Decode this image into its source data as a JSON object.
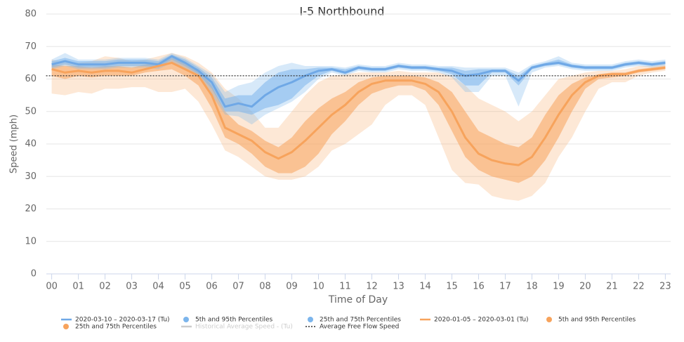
{
  "chart_data": {
    "type": "line",
    "title": "I-5 Northbound",
    "x_label": "Time of Day",
    "y_label": "Speed (mph)",
    "x": [
      0,
      0.5,
      1,
      1.5,
      2,
      2.5,
      3,
      3.5,
      4,
      4.5,
      5,
      5.5,
      6,
      6.5,
      7,
      7.5,
      8,
      8.5,
      9,
      9.5,
      10,
      10.5,
      11,
      11.5,
      12,
      12.5,
      13,
      13.5,
      14,
      14.5,
      15,
      15.5,
      16,
      16.5,
      17,
      17.5,
      18,
      18.5,
      19,
      19.5,
      20,
      20.5,
      21,
      21.5,
      22,
      22.5,
      23
    ],
    "xlim": [
      -0.2,
      23.2
    ],
    "xticks": [
      {
        "value": 0,
        "label": "00"
      },
      {
        "value": 1,
        "label": "01"
      },
      {
        "value": 2,
        "label": "02"
      },
      {
        "value": 3,
        "label": "03"
      },
      {
        "value": 4,
        "label": "04"
      },
      {
        "value": 5,
        "label": "05"
      },
      {
        "value": 6,
        "label": "06"
      },
      {
        "value": 7,
        "label": "07"
      },
      {
        "value": 8,
        "label": "08"
      },
      {
        "value": 9,
        "label": "09"
      },
      10,
      11,
      12,
      13,
      14,
      15,
      16,
      17,
      18,
      19,
      20,
      21,
      22,
      23
    ],
    "ylim": [
      0,
      80
    ],
    "yticks": [
      0,
      10,
      20,
      30,
      40,
      50,
      60,
      70,
      80
    ],
    "grid": true,
    "legend": "bottom",
    "series": [
      {
        "name": "2020-03-10 – 2020-03-17 (Tu)",
        "kind": "line",
        "color": "#6fa8e6",
        "values": [
          64.5,
          65.5,
          64.5,
          64.5,
          64.5,
          65,
          65,
          65,
          64.5,
          67,
          65,
          62.5,
          59,
          51.5,
          52.5,
          51.5,
          55,
          57.5,
          59,
          61,
          62.5,
          63,
          62,
          63.5,
          63,
          63,
          64,
          63.5,
          63.5,
          63,
          62.5,
          61,
          61.5,
          62.5,
          62.5,
          59.5,
          63.5,
          64.5,
          65,
          64,
          63.5,
          63.5,
          63.5,
          64.5,
          65,
          64.5,
          65
        ]
      },
      {
        "name": "5th and 95th Percentiles",
        "kind": "range",
        "color": "#7cb5ec",
        "fill_opacity": 0.3,
        "low": [
          63,
          64,
          63,
          63,
          63,
          63.5,
          63.5,
          63.5,
          63,
          65,
          63,
          60.5,
          55,
          49,
          48.5,
          46,
          49,
          51,
          53,
          56,
          60,
          62,
          61,
          62.5,
          62,
          62,
          63,
          62.5,
          62.5,
          62,
          60.5,
          56,
          56,
          61,
          61,
          51.5,
          62,
          63.5,
          64,
          63,
          62.5,
          62.5,
          62.5,
          63.5,
          64,
          63.5,
          64
        ],
        "high": [
          66,
          68,
          66,
          66,
          66,
          66.5,
          66.5,
          66.5,
          66,
          68,
          66.5,
          64,
          61.5,
          56,
          58,
          59,
          62,
          64,
          65,
          64,
          64,
          64,
          63.5,
          64.5,
          64,
          64,
          65,
          64.5,
          64.5,
          64,
          64,
          63.5,
          63.5,
          63.5,
          63.5,
          62,
          64.5,
          65.5,
          67,
          65,
          64.5,
          64.5,
          64.5,
          65.5,
          66,
          65.5,
          66
        ]
      },
      {
        "name": "25th and 75th Percentiles",
        "kind": "range",
        "color": "#7cb5ec",
        "fill_opacity": 0.55,
        "low": [
          63.5,
          64.5,
          63.5,
          63.5,
          63.5,
          64,
          64,
          64,
          63.5,
          66,
          64,
          61.5,
          57,
          50,
          50,
          49,
          51,
          52,
          54,
          58,
          61,
          62.5,
          61.5,
          63,
          62.5,
          62.5,
          63.5,
          63,
          63,
          62.5,
          61.5,
          58,
          58,
          62,
          62,
          58,
          63,
          64,
          64.5,
          63.5,
          63,
          63,
          63,
          64,
          64.5,
          64,
          64.5
        ],
        "high": [
          65.5,
          66.5,
          65.5,
          65.5,
          65.5,
          66,
          66,
          66,
          65.5,
          67.5,
          66,
          63.5,
          60.5,
          54,
          55,
          55,
          59,
          62,
          63,
          63,
          63.5,
          63.5,
          63,
          64,
          63.5,
          63.5,
          64.5,
          64,
          64,
          63.5,
          63.5,
          62.5,
          63,
          63,
          63,
          61,
          64,
          65,
          66,
          64.5,
          64,
          64,
          64,
          65,
          65.5,
          65,
          65.5
        ]
      },
      {
        "name": "2020-01-05 – 2020-03-01 (Tu)",
        "kind": "line",
        "color": "#f7a35c",
        "values": [
          63,
          62,
          62.5,
          62,
          62.5,
          62.5,
          62,
          63,
          64,
          65,
          63,
          61,
          55,
          45,
          43,
          41,
          37.5,
          35.5,
          37.5,
          41,
          45,
          49,
          52,
          56,
          58.5,
          59.5,
          59.5,
          59.5,
          58.5,
          56,
          50,
          42,
          37,
          35,
          34,
          33.5,
          36,
          42,
          49,
          55,
          59,
          61,
          61.5,
          61.5,
          62.5,
          63,
          63.5
        ]
      },
      {
        "name": "5th and 95th Percentiles",
        "kind": "range",
        "color": "#f7a35c",
        "fill_opacity": 0.25,
        "low": [
          55.5,
          55,
          56,
          55.5,
          57,
          57,
          57.5,
          57.5,
          56,
          56,
          57,
          53,
          46,
          38,
          36,
          33,
          30,
          29,
          29,
          30,
          33,
          38,
          40,
          43,
          46,
          52,
          55,
          55,
          52,
          42,
          32,
          28,
          27.5,
          24,
          23,
          22.5,
          24,
          28,
          36,
          42,
          50,
          57,
          59,
          59,
          61,
          62,
          62.5
        ],
        "high": [
          66,
          65,
          65,
          65.5,
          67,
          66.5,
          65.5,
          66,
          67,
          68,
          67,
          65,
          62,
          57,
          54,
          50,
          45,
          45,
          50,
          55,
          59,
          61,
          61.5,
          62,
          62,
          62,
          62.5,
          62,
          62,
          62,
          61,
          58,
          54,
          52,
          50,
          47,
          50,
          55,
          60,
          61,
          62,
          62.5,
          62.5,
          63,
          64,
          64,
          64.5
        ]
      },
      {
        "name": "25th and 75th Percentiles",
        "kind": "range",
        "color": "#f7a35c",
        "fill_opacity": 0.55,
        "low": [
          61,
          60,
          61,
          60.5,
          61,
          61,
          61,
          62,
          62.5,
          63,
          61,
          58,
          51,
          42,
          40,
          37,
          33,
          31,
          31,
          33,
          37,
          43,
          47,
          52,
          55.5,
          57,
          58,
          58,
          56.5,
          52,
          44,
          36,
          32,
          30,
          29,
          28,
          30,
          35,
          42,
          50,
          57,
          60,
          60.5,
          61,
          62,
          62.5,
          63
        ],
        "high": [
          64.5,
          64,
          64,
          63.5,
          64,
          64,
          63.5,
          64.5,
          65,
          66.5,
          65,
          63,
          58,
          50,
          46,
          44,
          41,
          39,
          42,
          47,
          51,
          54,
          56,
          59,
          60.5,
          61,
          61,
          61,
          60.5,
          59,
          56,
          50,
          44,
          42,
          40,
          39,
          42,
          49,
          55,
          58.5,
          60.5,
          61.5,
          62,
          62,
          63,
          63.5,
          64
        ]
      },
      {
        "name": "Historical Average Speed - (Tu)",
        "kind": "line",
        "color": "#cccccc",
        "visible": false
      },
      {
        "name": "Average Free Flow Speed",
        "kind": "dotted",
        "color": "#333333",
        "value": 61
      }
    ]
  }
}
